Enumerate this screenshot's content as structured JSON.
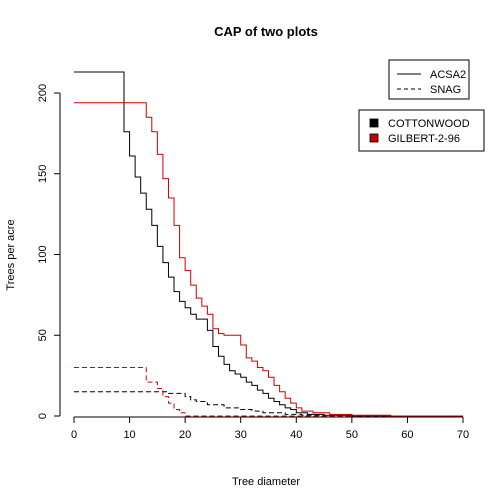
{
  "chart_data": {
    "type": "line",
    "title": "CAP of two plots",
    "xlabel": "Tree diameter",
    "ylabel": "Trees per acre",
    "xlim": [
      0,
      70
    ],
    "ylim": [
      0,
      210
    ],
    "x_ticks": [
      0,
      10,
      20,
      30,
      40,
      50,
      60,
      70
    ],
    "y_ticks": [
      0,
      50,
      100,
      150,
      200
    ],
    "grid": false,
    "legend_linetype": {
      "position": "top-right",
      "entries": [
        {
          "label": "ACSA2",
          "style": "solid"
        },
        {
          "label": "SNAG",
          "style": "dashed"
        }
      ]
    },
    "legend_color": {
      "position": "right",
      "entries": [
        {
          "label": "COTTONWOOD",
          "color": "#000000"
        },
        {
          "label": "GILBERT-2-96",
          "color": "#cc0000"
        }
      ]
    },
    "series": [
      {
        "plot": "COTTONWOOD",
        "species": "ACSA2",
        "color": "#000000",
        "style": "solid",
        "x": [
          0,
          9,
          10,
          11,
          12,
          13,
          14,
          15,
          16,
          17,
          18,
          19,
          20,
          21,
          22,
          24,
          25,
          26,
          27,
          28,
          29,
          30,
          31,
          32,
          33,
          34,
          35,
          36,
          37,
          38,
          39,
          40,
          42,
          45,
          50
        ],
        "y": [
          213,
          176,
          161,
          148,
          138,
          128,
          118,
          105,
          95,
          86,
          77,
          71,
          67,
          63,
          60,
          53,
          43,
          37,
          32,
          28,
          26,
          24,
          21,
          19,
          16,
          14,
          11,
          9,
          7,
          5,
          4,
          2,
          1,
          0.5,
          0
        ]
      },
      {
        "plot": "GILBERT-2-96",
        "species": "ACSA2",
        "color": "#cc0000",
        "style": "solid",
        "x": [
          0,
          13,
          14,
          15,
          16,
          17,
          18,
          19,
          20,
          21,
          22,
          23,
          24,
          25,
          26,
          27,
          30,
          31,
          32,
          33,
          34,
          35,
          36,
          37,
          38,
          39,
          40,
          41,
          43,
          46,
          50,
          57
        ],
        "y": [
          194,
          185,
          176,
          162,
          147,
          135,
          118,
          98,
          90,
          81,
          73,
          68,
          63,
          54,
          51,
          50,
          44,
          36,
          34,
          30,
          28,
          24,
          19,
          15,
          11,
          8,
          5,
          3,
          2,
          1,
          0.5,
          0
        ]
      },
      {
        "plot": "COTTONWOOD",
        "species": "SNAG",
        "color": "#000000",
        "style": "dashed",
        "x": [
          0,
          17,
          20,
          21,
          22,
          24,
          27,
          30,
          32,
          34,
          38,
          41,
          45
        ],
        "y": [
          15,
          14,
          12,
          10,
          9,
          7,
          5,
          4,
          3,
          2,
          1,
          0.5,
          0
        ]
      },
      {
        "plot": "GILBERT-2-96",
        "species": "SNAG",
        "color": "#cc0000",
        "style": "dashed",
        "x": [
          0,
          13,
          15,
          16,
          17,
          18,
          19,
          20
        ],
        "y": [
          30,
          21,
          17,
          12,
          8,
          4,
          2,
          0
        ]
      }
    ]
  }
}
